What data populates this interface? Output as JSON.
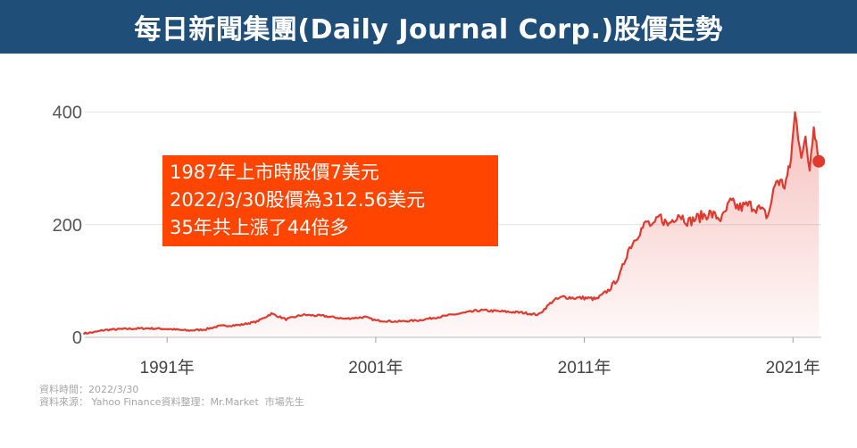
{
  "header": {
    "title": "每日新聞集團(Daily Journal Corp.)股價走勢"
  },
  "annotation": {
    "lines": [
      "1987年上市時股價7美元",
      "2022/3/30股價為312.56美元",
      "35年共上漲了44倍多"
    ]
  },
  "source": {
    "date_line": "資料時間：2022/3/30",
    "source_line": "資料來源： Yahoo Finance資料整理：Mr.Market  市場先生"
  },
  "colors": {
    "title_bg": "#1f4e79",
    "line": "#e03a2f",
    "annotation_bg": "#ff4500"
  },
  "chart_data": {
    "type": "area",
    "y_ticks": [
      0,
      200,
      400
    ],
    "ylim": [
      0,
      420
    ],
    "x_ticks": [
      {
        "x": 1991,
        "label": "1991年"
      },
      {
        "x": 2001,
        "label": "2001年"
      },
      {
        "x": 2011,
        "label": "2011年"
      },
      {
        "x": 2021,
        "label": "2021年"
      }
    ],
    "xlim": [
      1986.2,
      2023.0
    ],
    "grid": true,
    "series": [
      {
        "x": [
          1987.0,
          1987.5,
          1988.0,
          1989.0,
          1990.0,
          1991.0,
          1992.0,
          1992.8,
          1993.5,
          1994.5,
          1995.3,
          1996.0,
          1996.7,
          1997.5,
          1998.5,
          1999.5,
          2000.5,
          2001.0,
          2002.0,
          2003.0,
          2004.0,
          2005.0,
          2006.0,
          2007.0,
          2008.0,
          2008.8,
          2009.5,
          2010.0,
          2010.5,
          2011.0,
          2011.6,
          2012.2,
          2012.7,
          2013.1,
          2013.6,
          2014.0,
          2014.3,
          2014.6,
          2015.0,
          2015.5,
          2016.0,
          2016.6,
          2017.0,
          2017.6,
          2018.0,
          2018.4,
          2018.9,
          2019.3,
          2019.8,
          2020.2,
          2020.6,
          2020.85,
          2021.1,
          2021.4,
          2021.6,
          2021.8,
          2022.0,
          2022.24
        ],
        "values": [
          7,
          9,
          13,
          15,
          16,
          15,
          12,
          14,
          20,
          22,
          28,
          42,
          32,
          40,
          38,
          33,
          36,
          30,
          28,
          30,
          36,
          42,
          48,
          46,
          44,
          40,
          65,
          72,
          70,
          70,
          68,
          85,
          110,
          155,
          185,
          205,
          195,
          215,
          200,
          220,
          205,
          215,
          220,
          210,
          240,
          230,
          235,
          230,
          215,
          280,
          270,
          300,
          395,
          330,
          345,
          300,
          385,
          312.56
        ]
      }
    ],
    "end_marker_value": 312.56
  }
}
